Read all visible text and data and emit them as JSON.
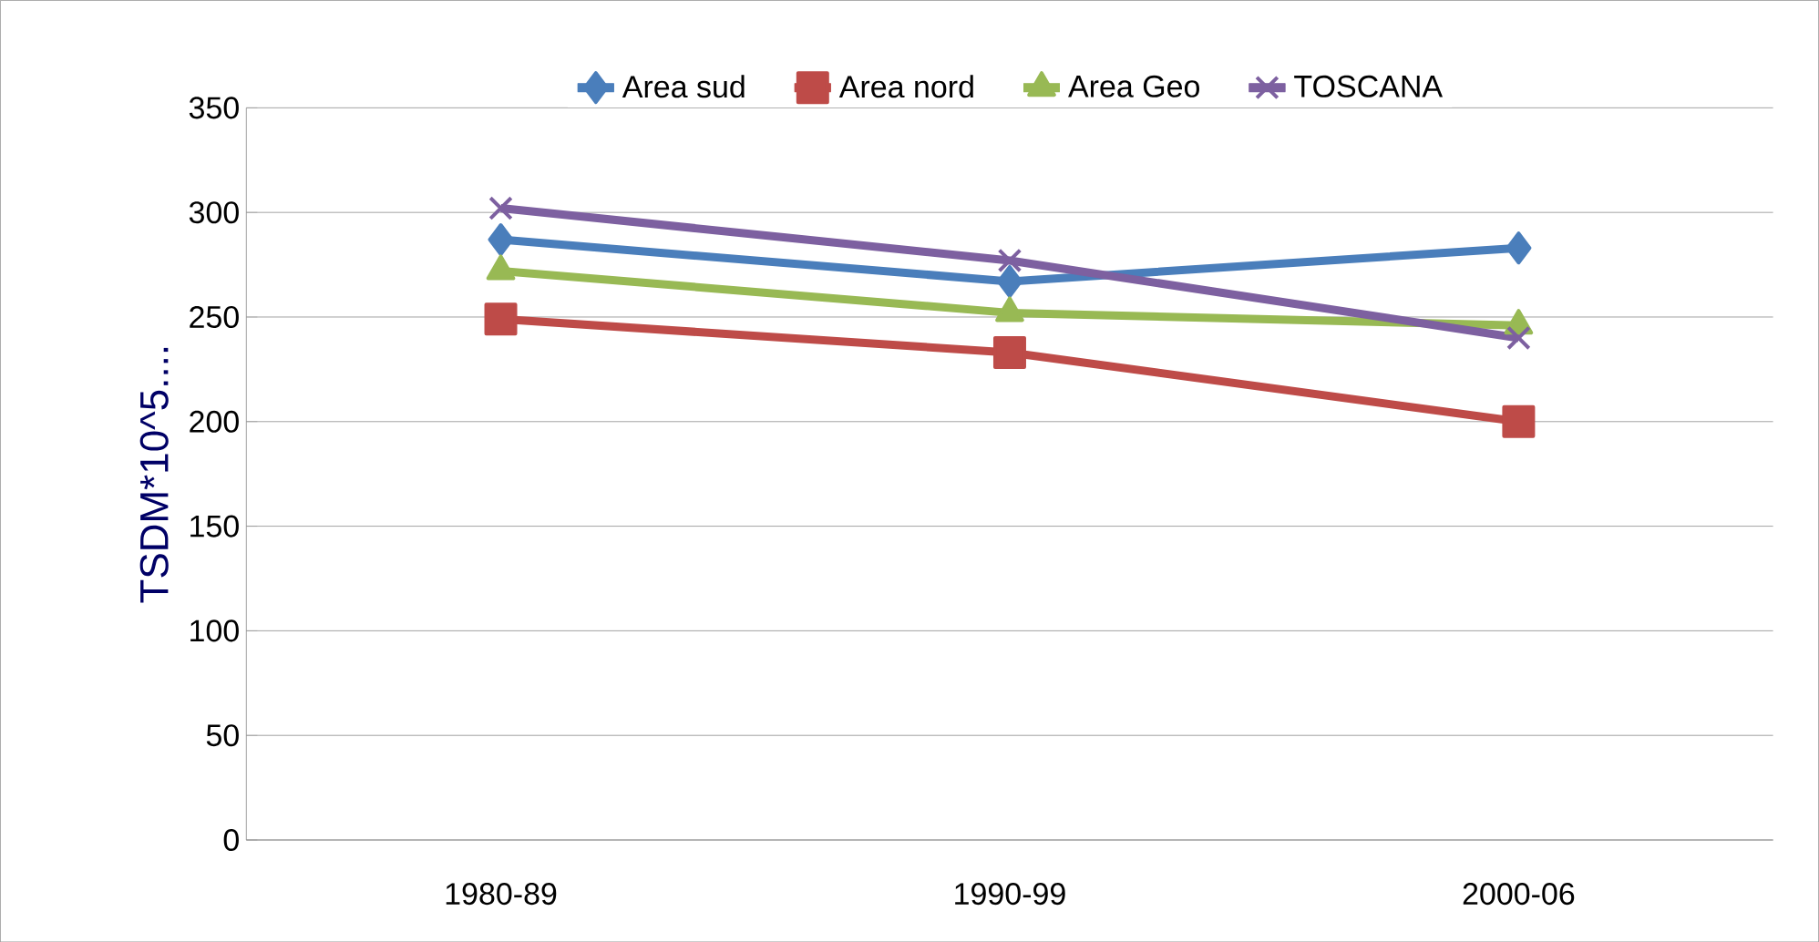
{
  "chart_data": {
    "type": "line",
    "ylabel": "TSDM*10^5....",
    "categories": [
      "1980-89",
      "1990-99",
      "2000-06"
    ],
    "series": [
      {
        "name": "Area sud",
        "color": "#4a7ebb",
        "marker": "diamond",
        "values": [
          287,
          267,
          283
        ]
      },
      {
        "name": "Area nord",
        "color": "#be4b48",
        "marker": "square",
        "values": [
          249,
          233,
          200
        ]
      },
      {
        "name": "Area Geo",
        "color": "#98b954",
        "marker": "triangle",
        "values": [
          272,
          252,
          246
        ]
      },
      {
        "name": "TOSCANA",
        "color": "#7d60a0",
        "marker": "cross",
        "values": [
          302,
          277,
          240
        ]
      }
    ],
    "ylim": [
      0,
      350
    ],
    "yticks": [
      0,
      50,
      100,
      150,
      200,
      250,
      300,
      350
    ],
    "grid": "y",
    "legend": "top"
  }
}
